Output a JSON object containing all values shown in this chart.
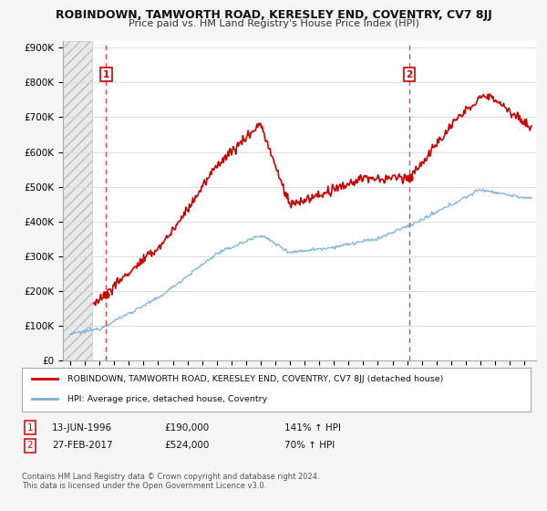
{
  "title": "ROBINDOWN, TAMWORTH ROAD, KERESLEY END, COVENTRY, CV7 8JJ",
  "subtitle": "Price paid vs. HM Land Registry's House Price Index (HPI)",
  "ylabel_ticks": [
    "£0",
    "£100K",
    "£200K",
    "£300K",
    "£400K",
    "£500K",
    "£600K",
    "£700K",
    "£800K",
    "£900K"
  ],
  "ytick_values": [
    0,
    100000,
    200000,
    300000,
    400000,
    500000,
    600000,
    700000,
    800000,
    900000
  ],
  "ylim": [
    0,
    920000
  ],
  "xlim_start": 1993.5,
  "xlim_end": 2025.8,
  "sale1_year": 1996.45,
  "sale1_price": 190000,
  "sale1_label": "1",
  "sale1_date": "13-JUN-1996",
  "sale1_amount": "£190,000",
  "sale1_hpi": "141% ↑ HPI",
  "sale2_year": 2017.15,
  "sale2_price": 524000,
  "sale2_label": "2",
  "sale2_date": "27-FEB-2017",
  "sale2_amount": "£524,000",
  "sale2_hpi": "70% ↑ HPI",
  "hatch_end_year": 1995.5,
  "red_line_color": "#cc0000",
  "blue_line_color": "#7aafd4",
  "dashed_red_color": "#ee4444",
  "box_color": "#cc0000",
  "legend_house": "ROBINDOWN, TAMWORTH ROAD, KERESLEY END, COVENTRY, CV7 8JJ (detached house)",
  "legend_hpi": "HPI: Average price, detached house, Coventry",
  "footer": "Contains HM Land Registry data © Crown copyright and database right 2024.\nThis data is licensed under the Open Government Licence v3.0.",
  "plot_bg_color": "#ffffff",
  "grid_color": "#dddddd",
  "fig_bg_color": "#f5f5f5"
}
